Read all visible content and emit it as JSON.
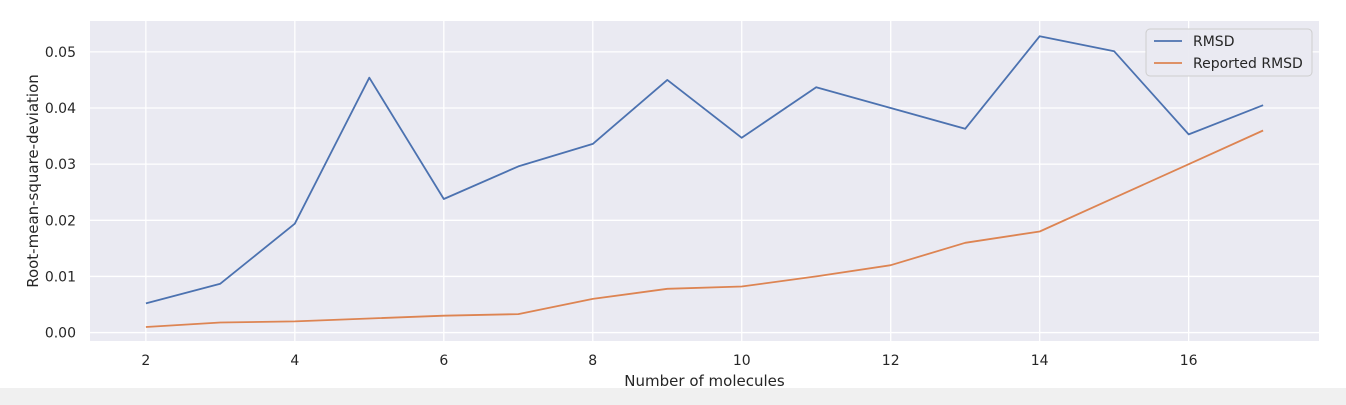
{
  "chart_data": {
    "type": "line",
    "xlabel": "Number of molecules",
    "ylabel": "Root-mean-square-deviation",
    "xlim": [
      1.25,
      17.75
    ],
    "ylim": [
      -0.0015,
      0.0555
    ],
    "x_ticks": [
      2,
      4,
      6,
      8,
      10,
      12,
      14,
      16
    ],
    "y_ticks": [
      0.0,
      0.01,
      0.02,
      0.03,
      0.04,
      0.05
    ],
    "y_tick_labels": [
      "0.00",
      "0.01",
      "0.02",
      "0.03",
      "0.04",
      "0.05"
    ],
    "grid": true,
    "legend_position": "top-right",
    "x": [
      2,
      3,
      4,
      5,
      6,
      7,
      8,
      9,
      10,
      11,
      12,
      13,
      14,
      15,
      16,
      17
    ],
    "series": [
      {
        "name": "RMSD",
        "color": "#4c72b0",
        "values": [
          0.0052,
          0.0087,
          0.0194,
          0.0454,
          0.0238,
          0.0296,
          0.0336,
          0.045,
          0.0347,
          0.0437,
          0.04,
          0.0363,
          0.0528,
          0.0501,
          0.0353,
          0.0405
        ]
      },
      {
        "name": "Reported RMSD",
        "color": "#dd8452",
        "values": [
          0.001,
          0.0018,
          0.002,
          0.0025,
          0.003,
          0.0033,
          0.006,
          0.0078,
          0.0082,
          0.01,
          0.012,
          0.016,
          0.018,
          0.024,
          0.03,
          0.036
        ]
      }
    ]
  },
  "colors": {
    "plot_background": "#eaeaf2",
    "grid": "#ffffff",
    "text": "#262626",
    "legend_background": "#eaeaf2",
    "legend_border": "#cccccc"
  }
}
